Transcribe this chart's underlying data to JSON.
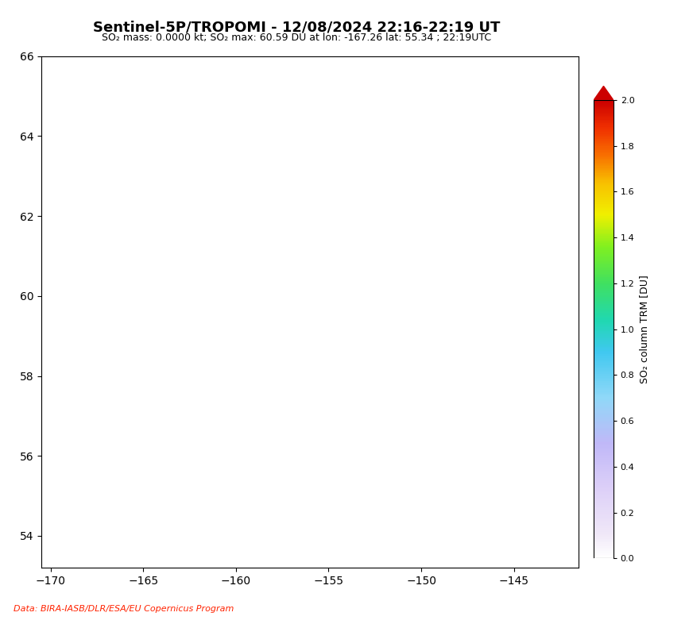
{
  "title": "Sentinel-5P/TROPOMI - 12/08/2024 22:16-22:19 UT",
  "subtitle": "SO₂ mass: 0.0000 kt; SO₂ max: 60.59 DU at lon: -167.26 lat: 55.34 ; 22:19UTC",
  "colorbar_label": "SO₂ column TRM [DU]",
  "colorbar_ticks": [
    0.0,
    0.2,
    0.4,
    0.6,
    0.8,
    1.0,
    1.2,
    1.4,
    1.6,
    1.8,
    2.0
  ],
  "lon_min": -170.5,
  "lon_max": -141.5,
  "lat_min": 53.2,
  "lat_max": 66.0,
  "xticks": [
    -165,
    -160,
    -155,
    -150,
    -145
  ],
  "yticks": [
    54,
    56,
    58,
    60,
    62,
    64
  ],
  "data_source": "Data: BIRA-IASB/DLR/ESA/EU Copernicus Program",
  "background_color": "#ffffff",
  "land_color": "none",
  "coast_color": "#000000",
  "ocean_color": "#ffffff",
  "title_fontsize": 13,
  "subtitle_fontsize": 9,
  "colorbar_fontsize": 9,
  "fig_width": 8.67,
  "fig_height": 7.86,
  "dpi": 100,
  "so2_vmin": 0.0,
  "so2_vmax": 2.0,
  "noise_seed": 42,
  "source_text_color": "#ff2200",
  "so2_colors": [
    [
      0.0,
      "#ffffff"
    ],
    [
      0.05,
      "#f0e8f8"
    ],
    [
      0.15,
      "#ddd0f8"
    ],
    [
      0.25,
      "#c0b8f8"
    ],
    [
      0.35,
      "#90d8f8"
    ],
    [
      0.45,
      "#40c8f0"
    ],
    [
      0.52,
      "#20d8b0"
    ],
    [
      0.6,
      "#40e060"
    ],
    [
      0.68,
      "#80f020"
    ],
    [
      0.75,
      "#f0f000"
    ],
    [
      0.82,
      "#f8c000"
    ],
    [
      0.88,
      "#f87000"
    ],
    [
      0.94,
      "#f03000"
    ],
    [
      1.0,
      "#cc0000"
    ]
  ]
}
